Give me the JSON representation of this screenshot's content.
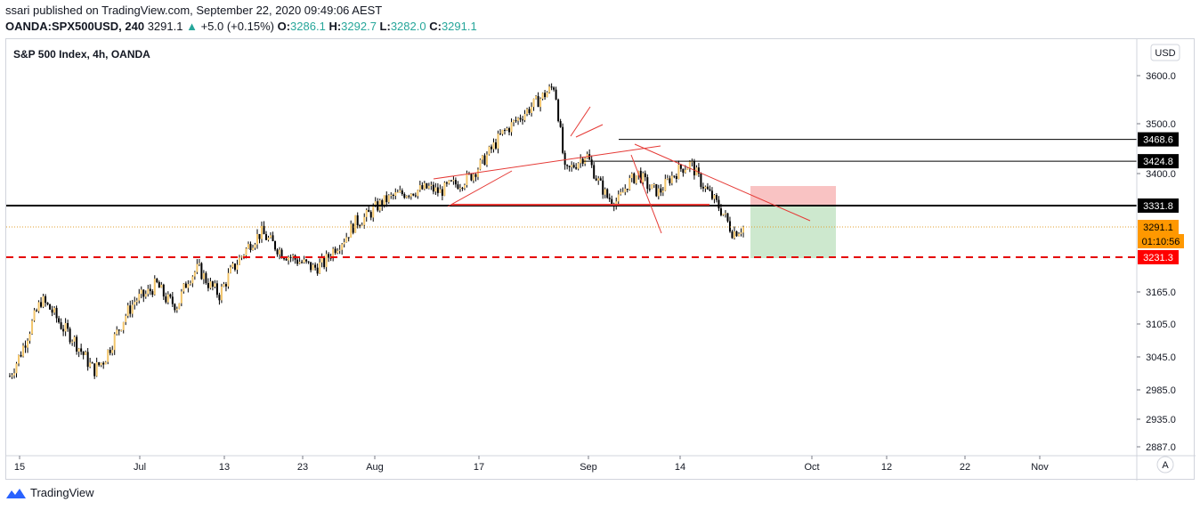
{
  "header": {
    "published": "ssari published on TradingView.com, September 22, 2020 09:49:06 AEST",
    "symbol": "OANDA:SPX500USD, 240",
    "last": "3291.1",
    "change_arrow": "▲",
    "change": "+5.0 (+0.15%)",
    "o_label": "O:",
    "o": "3286.1",
    "h_label": "H:",
    "h": "3292.7",
    "l_label": "L:",
    "l": "3282.0",
    "c_label": "C:",
    "c": "3291.1"
  },
  "footer": {
    "brand": "TradingView",
    "icon": "tradingview-logo-icon"
  },
  "chart_data": {
    "type": "candlestick",
    "title": "S&P 500 Index, 4h, OANDA",
    "currency_button": "USD",
    "auto_scale_button": "A",
    "y_ticks": [
      3600.0,
      3500.0,
      3400.0,
      3165.0,
      3105.0,
      3045.0,
      2985.0,
      2935.0,
      2887.0
    ],
    "x_ticks": [
      "15",
      "Jul",
      "13",
      "23",
      "Aug",
      "17",
      "Sep",
      "14",
      "Oct",
      "12",
      "22",
      "Nov"
    ],
    "price_labels": [
      {
        "value": 3468.6,
        "label": "3468.6",
        "bg": "#000000",
        "fg": "#ffffff"
      },
      {
        "value": 3424.8,
        "label": "3424.8",
        "bg": "#000000",
        "fg": "#ffffff"
      },
      {
        "value": 3331.8,
        "label": "3331.8",
        "bg": "#000000",
        "fg": "#ffffff"
      },
      {
        "value": 3291.1,
        "label": "3291.1",
        "bg": "#ff9800",
        "fg": "#000000"
      },
      {
        "value": 3231.3,
        "label": "3231.3",
        "bg": "#ff0000",
        "fg": "#ffffff"
      }
    ],
    "countdown": "01:10:56",
    "horizontal_lines": [
      3468.6,
      3424.8,
      3331.8,
      3231.3
    ],
    "close_series_approx": [
      3010,
      3050,
      3100,
      3150,
      3130,
      3100,
      3080,
      3050,
      3020,
      3040,
      3080,
      3120,
      3150,
      3160,
      3180,
      3150,
      3140,
      3190,
      3210,
      3180,
      3160,
      3200,
      3230,
      3260,
      3280,
      3260,
      3240,
      3230,
      3220,
      3210,
      3220,
      3250,
      3270,
      3300,
      3310,
      3330,
      3345,
      3355,
      3360,
      3365,
      3370,
      3360,
      3375,
      3380,
      3395,
      3420,
      3450,
      3480,
      3500,
      3520,
      3540,
      3560,
      3580,
      3400,
      3420,
      3440,
      3390,
      3350,
      3340,
      3380,
      3400,
      3370,
      3360,
      3390,
      3410,
      3420,
      3380,
      3350,
      3320,
      3280,
      3291
    ]
  }
}
